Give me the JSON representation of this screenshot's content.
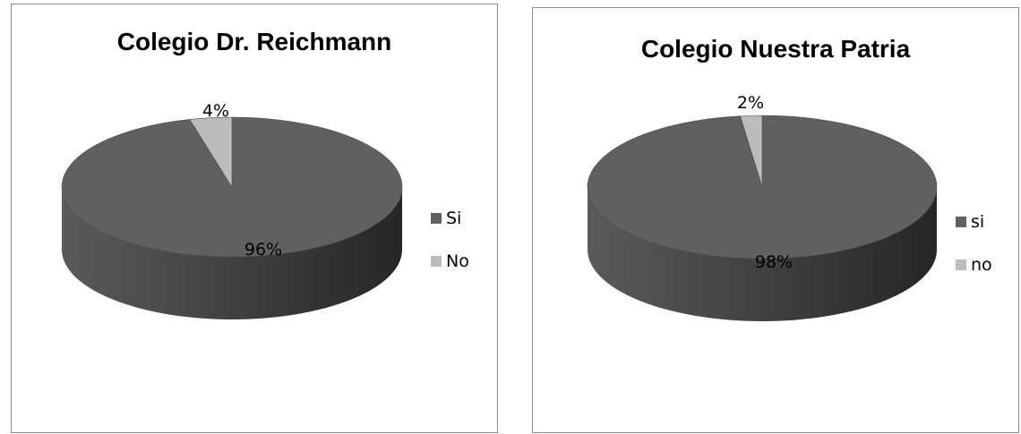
{
  "chart_data": [
    {
      "type": "pie",
      "title": "Colegio Dr. Reichmann",
      "categories": [
        "Si",
        "No"
      ],
      "values": [
        96,
        4
      ],
      "data_labels": [
        "96%",
        "4%"
      ],
      "colors": [
        "#606060",
        "#bcbcbc"
      ],
      "legend_position": "right",
      "style": "3d"
    },
    {
      "type": "pie",
      "title": "Colegio Nuestra Patria",
      "categories": [
        "si",
        "no"
      ],
      "values": [
        98,
        2
      ],
      "data_labels": [
        "98%",
        "2%"
      ],
      "colors": [
        "#606060",
        "#bcbcbc"
      ],
      "legend_position": "right",
      "style": "3d"
    }
  ]
}
